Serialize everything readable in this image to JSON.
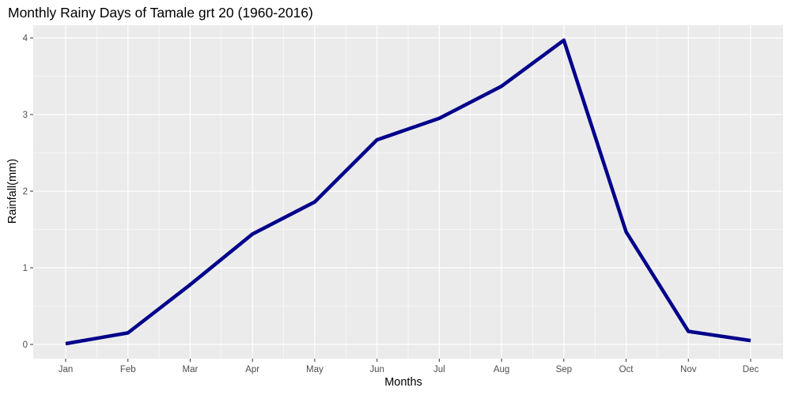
{
  "title": "Monthly Rainy Days of Tamale grt 20 (1960-2016)",
  "chart_data": {
    "type": "line",
    "title": "Monthly Rainy Days of Tamale grt 20 (1960-2016)",
    "xlabel": "Months",
    "ylabel": "Rainfall(mm)",
    "categories": [
      "Jan",
      "Feb",
      "Mar",
      "Apr",
      "May",
      "Jun",
      "Jul",
      "Aug",
      "Sep",
      "Oct",
      "Nov",
      "Dec"
    ],
    "series": [
      {
        "values": [
          0.01,
          0.15,
          0.78,
          1.44,
          1.86,
          2.67,
          2.95,
          3.37,
          3.97,
          1.47,
          0.17,
          0.05
        ]
      }
    ],
    "ylim": [
      0,
      4
    ],
    "yticks": [
      0,
      1,
      2,
      3,
      4
    ],
    "line_color": "#00008b",
    "panel_background": "#ebebeb",
    "grid_color": "#ffffff",
    "grid": true,
    "legend": "none"
  }
}
